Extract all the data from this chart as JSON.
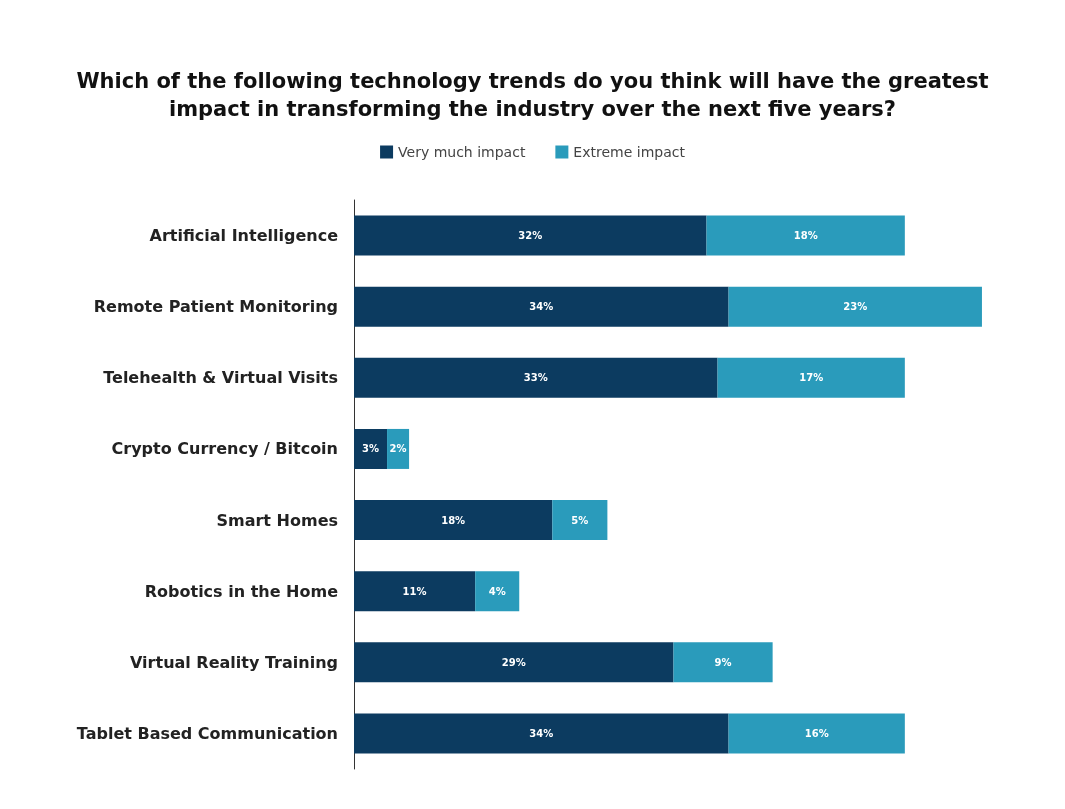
{
  "chart_data": {
    "type": "bar",
    "title": "Which of the following technology trends do you think will have the greatest\nimpact in transforming the industry over the next five years?",
    "orientation": "horizontal",
    "stacked": true,
    "legend": "top",
    "categories": [
      "Artificial Intelligence",
      "Remote Patient Monitoring",
      "Telehealth & Virtual Visits",
      "Crypto Currency / Bitcoin",
      "Smart Homes",
      "Robotics in the Home",
      "Virtual Reality Training",
      "Tablet Based Communication"
    ],
    "series": [
      {
        "name": "Very much impact",
        "color": "#0c3b60",
        "values": [
          32,
          34,
          33,
          3,
          18,
          11,
          29,
          34
        ],
        "value_labels": [
          "32%",
          "34%",
          "33%",
          "3%",
          "18%",
          "11%",
          "29%",
          "34%"
        ]
      },
      {
        "name": "Extreme impact",
        "color": "#2a9bbb",
        "values": [
          18,
          23,
          17,
          2,
          5,
          4,
          9,
          16
        ],
        "value_labels": [
          "18%",
          "23%",
          "17%",
          "2%",
          "5%",
          "4%",
          "9%",
          "16%"
        ]
      }
    ]
  }
}
